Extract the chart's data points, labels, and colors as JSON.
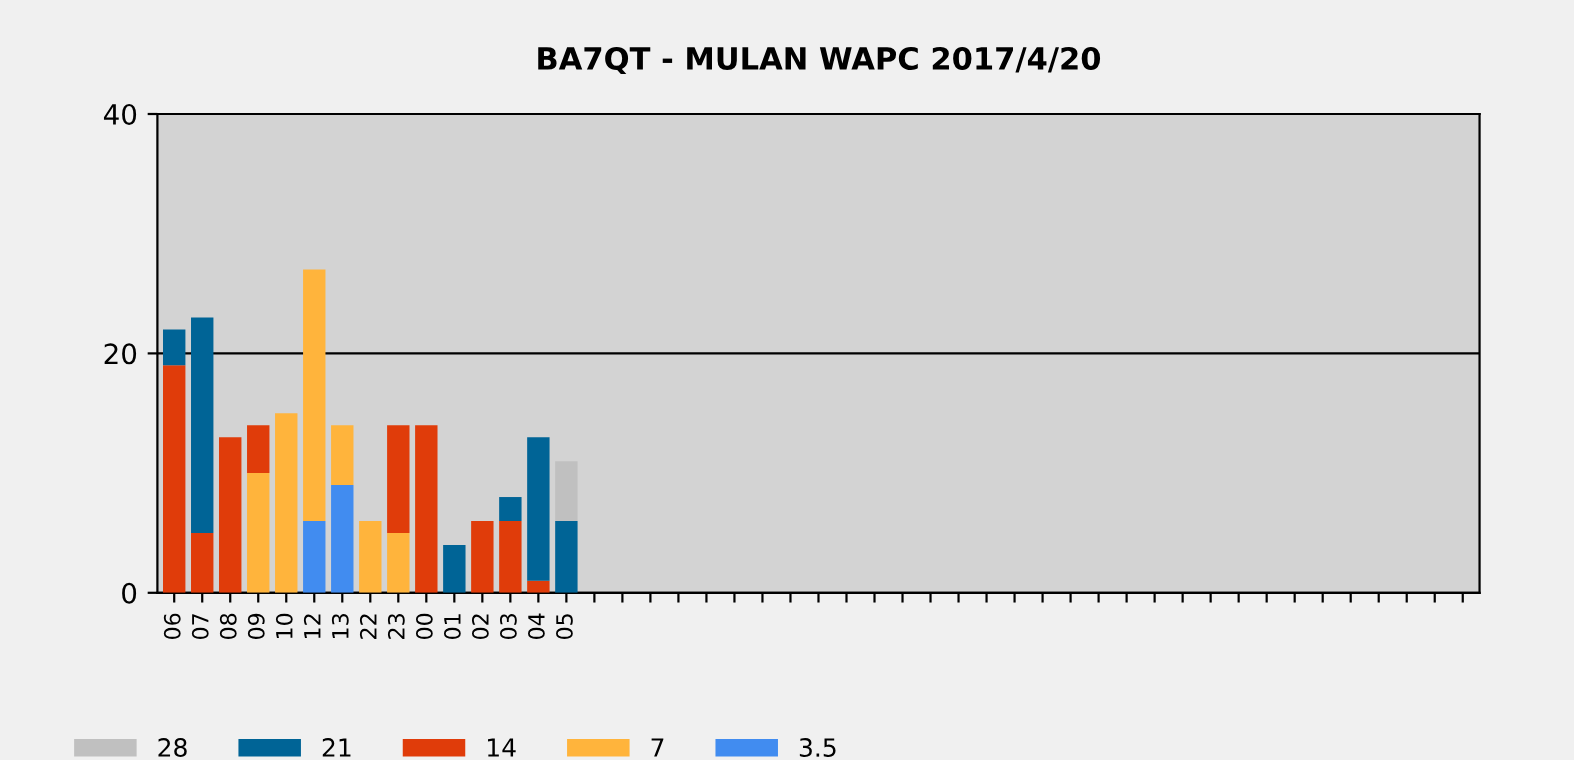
{
  "chart_data": {
    "type": "bar",
    "title": "BA7QT - MULAN WAPC 2017/4/20",
    "stacked": true,
    "categories": [
      "06",
      "07",
      "08",
      "09",
      "10",
      "12",
      "13",
      "22",
      "23",
      "00",
      "01",
      "02",
      "03",
      "04",
      "05",
      null,
      null,
      null,
      null,
      null,
      null,
      null,
      null,
      null,
      null,
      null,
      null,
      null,
      null,
      null,
      null,
      null,
      null,
      null,
      null,
      null,
      null,
      null,
      null,
      null,
      null,
      null,
      null,
      null,
      null,
      null,
      null
    ],
    "series": [
      {
        "name": "3.5",
        "color": "#418cf0",
        "values": [
          0,
          0,
          0,
          0,
          0,
          6,
          9,
          0,
          0,
          0,
          0,
          0,
          0,
          0,
          0,
          0,
          0,
          0,
          0,
          0,
          0,
          0,
          0,
          0,
          0,
          0,
          0,
          0,
          0,
          0,
          0,
          0,
          0,
          0,
          0,
          0,
          0,
          0,
          0,
          0,
          0,
          0,
          0,
          0,
          0,
          0,
          0
        ]
      },
      {
        "name": "7",
        "color": "#ffb43c",
        "values": [
          0,
          0,
          0,
          10,
          15,
          21,
          5,
          6,
          5,
          0,
          0,
          0,
          0,
          0,
          0,
          0,
          0,
          0,
          0,
          0,
          0,
          0,
          0,
          0,
          0,
          0,
          0,
          0,
          0,
          0,
          0,
          0,
          0,
          0,
          0,
          0,
          0,
          0,
          0,
          0,
          0,
          0,
          0,
          0,
          0,
          0,
          0
        ]
      },
      {
        "name": "14",
        "color": "#e03c0a",
        "values": [
          19,
          5,
          13,
          4,
          0,
          0,
          0,
          0,
          9,
          14,
          0,
          6,
          6,
          1,
          0,
          0,
          0,
          0,
          0,
          0,
          0,
          0,
          0,
          0,
          0,
          0,
          0,
          0,
          0,
          0,
          0,
          0,
          0,
          0,
          0,
          0,
          0,
          0,
          0,
          0,
          0,
          0,
          0,
          0,
          0,
          0,
          0
        ]
      },
      {
        "name": "21",
        "color": "#006496",
        "values": [
          3,
          18,
          0,
          0,
          0,
          0,
          0,
          0,
          0,
          0,
          4,
          0,
          2,
          12,
          6,
          0,
          0,
          0,
          0,
          0,
          0,
          0,
          0,
          0,
          0,
          0,
          0,
          0,
          0,
          0,
          0,
          0,
          0,
          0,
          0,
          0,
          0,
          0,
          0,
          0,
          0,
          0,
          0,
          0,
          0,
          0,
          0
        ]
      },
      {
        "name": "28",
        "color": "#c0c0c0",
        "values": [
          0,
          0,
          0,
          0,
          0,
          0,
          0,
          0,
          0,
          0,
          0,
          0,
          0,
          0,
          5,
          0,
          0,
          0,
          0,
          0,
          0,
          0,
          0,
          0,
          0,
          0,
          0,
          0,
          0,
          0,
          0,
          0,
          0,
          0,
          0,
          0,
          0,
          0,
          0,
          0,
          0,
          0,
          0,
          0,
          0,
          0,
          0
        ]
      }
    ],
    "ylim": [
      0,
      40
    ],
    "yticks": [
      0,
      20,
      40
    ],
    "grid": "y",
    "legend": "bottom left"
  }
}
